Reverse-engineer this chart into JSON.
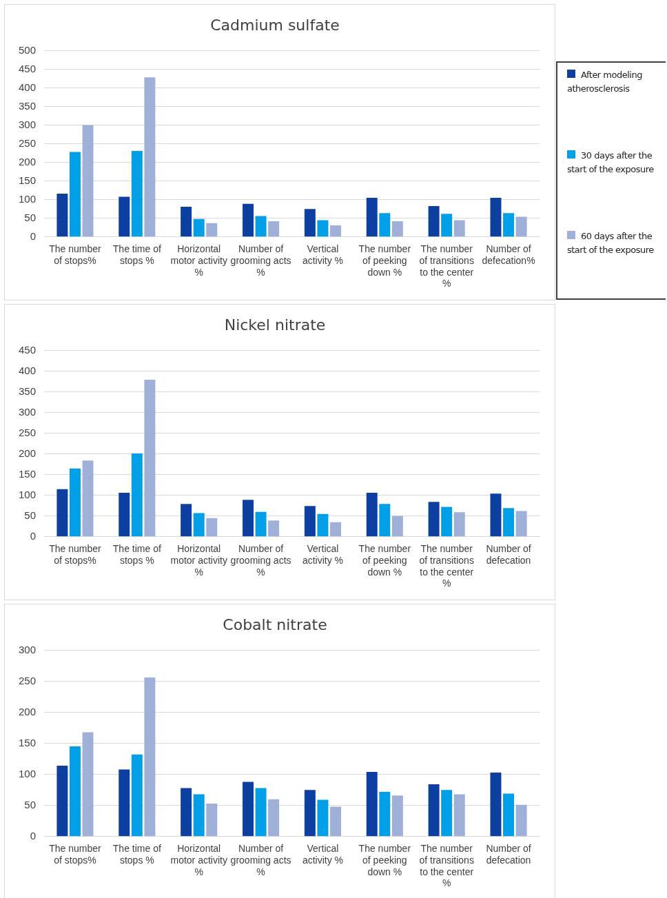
{
  "chart_data": [
    {
      "type": "bar",
      "title": "Cadmium sulfate",
      "categories": [
        "The number of stops%",
        "The time of stops %",
        "Horizontal motor activity %",
        "Number of grooming acts %",
        "Vertical activity %",
        "The number of peeking down %",
        "The number of transitions to the center %",
        "Number of defecation%"
      ],
      "series": [
        {
          "name": "After modeling atherosclerosis",
          "color": "#0d3fa0",
          "values": [
            116,
            108,
            81,
            89,
            75,
            105,
            83,
            105
          ]
        },
        {
          "name": "30 days after the start of the exposure",
          "color": "#009fe8",
          "values": [
            228,
            231,
            48,
            56,
            45,
            64,
            62,
            64
          ]
        },
        {
          "name": "60 days after the start of the exposure",
          "color": "#9fb0d8",
          "values": [
            300,
            428,
            37,
            42,
            31,
            42,
            45,
            54
          ]
        }
      ],
      "ylim": [
        0,
        500
      ],
      "yticks": [
        0,
        50,
        100,
        150,
        200,
        250,
        300,
        350,
        400,
        450,
        500
      ],
      "grid": "y",
      "legend": "right"
    },
    {
      "type": "bar",
      "title": "Nickel nitrate",
      "categories": [
        "The number of stops%",
        "The time of stops %",
        "Horizontal motor activity %",
        "Number of grooming acts %",
        "Vertical activity %",
        "The number of peeking down %",
        "The number of transitions to the center %",
        "Number of defecation"
      ],
      "series": [
        {
          "color": "#0d3fa0",
          "values": [
            115,
            106,
            79,
            89,
            74,
            106,
            84,
            104
          ]
        },
        {
          "color": "#009fe8",
          "values": [
            165,
            201,
            57,
            60,
            55,
            79,
            72,
            69
          ]
        },
        {
          "color": "#9fb0d8",
          "values": [
            184,
            379,
            45,
            39,
            35,
            50,
            59,
            62
          ]
        }
      ],
      "ylim": [
        0,
        450
      ],
      "yticks": [
        0,
        50,
        100,
        150,
        200,
        250,
        300,
        350,
        400,
        450
      ],
      "grid": "y"
    },
    {
      "type": "bar",
      "title": "Cobalt nitrate",
      "categories": [
        "The number of stops%",
        "The time of stops %",
        "Horizontal motor activity %",
        "Number of grooming acts %",
        "Vertical activity %",
        "The number of peeking down %",
        "The number of transitions to the center %",
        "Number of defecation"
      ],
      "series": [
        {
          "color": "#0d3fa0",
          "values": [
            114,
            108,
            78,
            88,
            75,
            104,
            84,
            103
          ]
        },
        {
          "color": "#009fe8",
          "values": [
            145,
            132,
            68,
            78,
            59,
            72,
            75,
            69
          ]
        },
        {
          "color": "#9fb0d8",
          "values": [
            168,
            256,
            53,
            60,
            48,
            66,
            68,
            51
          ]
        }
      ],
      "ylim": [
        0,
        300
      ],
      "yticks": [
        0,
        50,
        100,
        150,
        200,
        250,
        300
      ],
      "grid": "y"
    }
  ]
}
